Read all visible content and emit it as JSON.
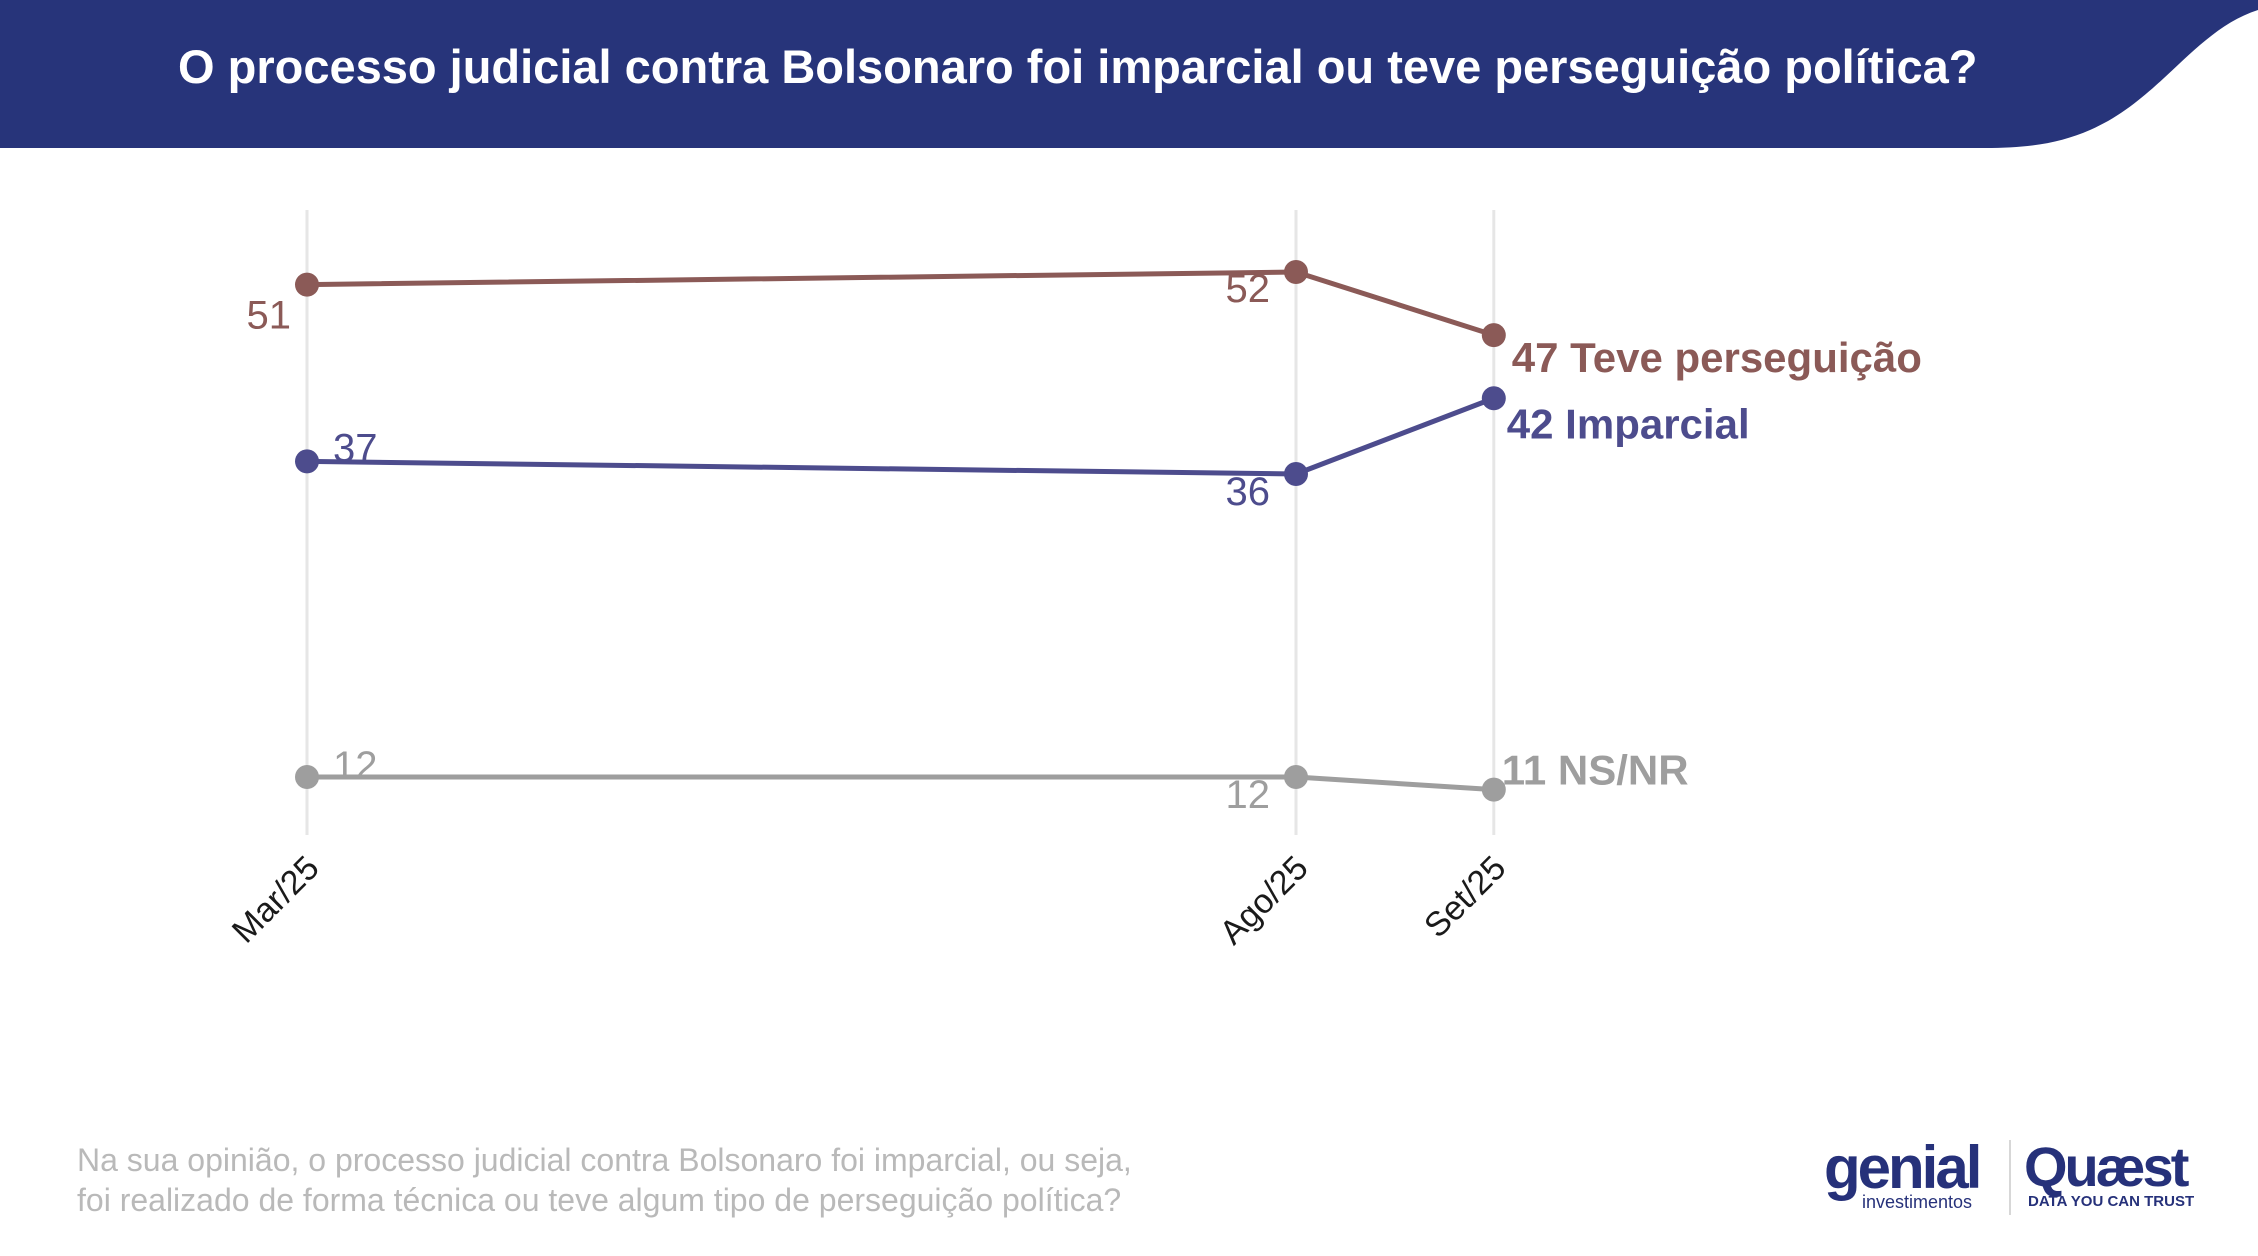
{
  "header": {
    "title": "O processo judicial contra Bolsonaro foi imparcial ou teve perseguição política?",
    "background_color": "#27347a"
  },
  "chart_data": {
    "type": "line",
    "title": "O processo judicial contra Bolsonaro foi imparcial ou teve perseguição política?",
    "x": [
      "Mar/25",
      "Ago/25",
      "Set/25"
    ],
    "x_dates": [
      "2025-03",
      "2025-08",
      "2025-09"
    ],
    "xlabel": "",
    "ylabel": "",
    "ylim": [
      8,
      55
    ],
    "grid": "vertical lines at each date",
    "legend": "inline labels at line ends",
    "series": [
      {
        "name": "Teve perseguição",
        "values": [
          51,
          52,
          47
        ],
        "color": "#8b5a57",
        "end_label": "47 Teve perseguição"
      },
      {
        "name": "Imparcial",
        "values": [
          37,
          36,
          42
        ],
        "color": "#4d4c8d",
        "end_label": "42 Imparcial"
      },
      {
        "name": "NS/NR",
        "values": [
          12,
          12,
          11
        ],
        "color": "#9e9e9e",
        "end_label": "11 NS/NR"
      }
    ],
    "point_labels": [
      [
        "51",
        "52"
      ],
      [
        "37",
        "36"
      ],
      [
        "12",
        "12"
      ]
    ]
  },
  "footnote": {
    "line1": "Na sua opinião, o processo judicial contra Bolsonaro foi imparcial, ou seja,",
    "line2": "foi realizado de forma técnica ou teve algum tipo de perseguição política?"
  },
  "logos": {
    "genial": {
      "name": "genial",
      "subtitle": "investimentos"
    },
    "quaest": {
      "name": "Quæst",
      "tagline": "DATA YOU CAN TRUST"
    },
    "color": "#26317a"
  }
}
